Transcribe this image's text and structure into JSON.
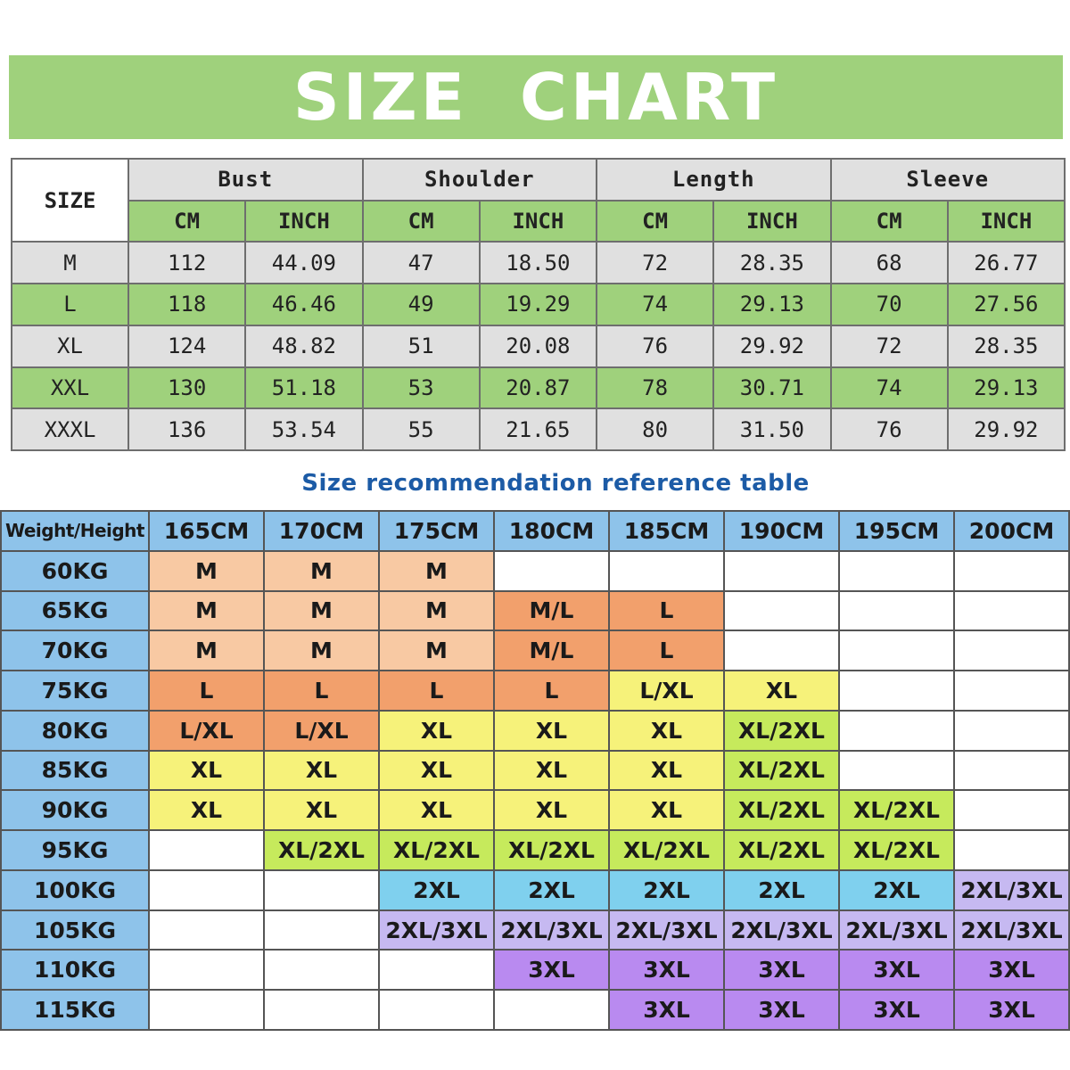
{
  "title": "SIZE  CHART",
  "size_table": {
    "size_header": "SIZE",
    "groups": [
      "Bust",
      "Shoulder",
      "Length",
      "Sleeve"
    ],
    "units": [
      "CM",
      "INCH",
      "CM",
      "INCH",
      "CM",
      "INCH",
      "CM",
      "INCH"
    ],
    "rows": [
      {
        "size": "M",
        "values": [
          "112",
          "44.09",
          "47",
          "18.50",
          "72",
          "28.35",
          "68",
          "26.77"
        ]
      },
      {
        "size": "L",
        "values": [
          "118",
          "46.46",
          "49",
          "19.29",
          "74",
          "29.13",
          "70",
          "27.56"
        ]
      },
      {
        "size": "XL",
        "values": [
          "124",
          "48.82",
          "51",
          "20.08",
          "76",
          "29.92",
          "72",
          "28.35"
        ]
      },
      {
        "size": "XXL",
        "values": [
          "130",
          "51.18",
          "53",
          "20.87",
          "78",
          "30.71",
          "74",
          "29.13"
        ]
      },
      {
        "size": "XXXL",
        "values": [
          "136",
          "53.54",
          "55",
          "21.65",
          "80",
          "31.50",
          "76",
          "29.92"
        ]
      }
    ]
  },
  "recommendation": {
    "subtitle": "Size recommendation reference table",
    "corner_label": "Weight/Height",
    "heights": [
      "165CM",
      "170CM",
      "175CM",
      "180CM",
      "185CM",
      "190CM",
      "195CM",
      "200CM"
    ],
    "rows": [
      {
        "weight": "60KG",
        "cells": [
          [
            "M",
            "peach"
          ],
          [
            "M",
            "peach"
          ],
          [
            "M",
            "peach"
          ],
          [
            "",
            "empty"
          ],
          [
            "",
            "empty"
          ],
          [
            "",
            "empty"
          ],
          [
            "",
            "empty"
          ],
          [
            "",
            "empty"
          ]
        ]
      },
      {
        "weight": "65KG",
        "cells": [
          [
            "M",
            "peach"
          ],
          [
            "M",
            "peach"
          ],
          [
            "M",
            "peach"
          ],
          [
            "M/L",
            "orange"
          ],
          [
            "L",
            "orange"
          ],
          [
            "",
            "empty"
          ],
          [
            "",
            "empty"
          ],
          [
            "",
            "empty"
          ]
        ]
      },
      {
        "weight": "70KG",
        "cells": [
          [
            "M",
            "peach"
          ],
          [
            "M",
            "peach"
          ],
          [
            "M",
            "peach"
          ],
          [
            "M/L",
            "orange"
          ],
          [
            "L",
            "orange"
          ],
          [
            "",
            "empty"
          ],
          [
            "",
            "empty"
          ],
          [
            "",
            "empty"
          ]
        ]
      },
      {
        "weight": "75KG",
        "cells": [
          [
            "L",
            "orange"
          ],
          [
            "L",
            "orange"
          ],
          [
            "L",
            "orange"
          ],
          [
            "L",
            "orange"
          ],
          [
            "L/XL",
            "yellow"
          ],
          [
            "XL",
            "yellow"
          ],
          [
            "",
            "empty"
          ],
          [
            "",
            "empty"
          ]
        ]
      },
      {
        "weight": "80KG",
        "cells": [
          [
            "L/XL",
            "orange"
          ],
          [
            "L/XL",
            "orange"
          ],
          [
            "XL",
            "yellow"
          ],
          [
            "XL",
            "yellow"
          ],
          [
            "XL",
            "yellow"
          ],
          [
            "XL/2XL",
            "lime"
          ],
          [
            "",
            "empty"
          ],
          [
            "",
            "empty"
          ]
        ]
      },
      {
        "weight": "85KG",
        "cells": [
          [
            "XL",
            "yellow"
          ],
          [
            "XL",
            "yellow"
          ],
          [
            "XL",
            "yellow"
          ],
          [
            "XL",
            "yellow"
          ],
          [
            "XL",
            "yellow"
          ],
          [
            "XL/2XL",
            "lime"
          ],
          [
            "",
            "empty"
          ],
          [
            "",
            "empty"
          ]
        ]
      },
      {
        "weight": "90KG",
        "cells": [
          [
            "XL",
            "yellow"
          ],
          [
            "XL",
            "yellow"
          ],
          [
            "XL",
            "yellow"
          ],
          [
            "XL",
            "yellow"
          ],
          [
            "XL",
            "yellow"
          ],
          [
            "XL/2XL",
            "lime"
          ],
          [
            "XL/2XL",
            "lime"
          ],
          [
            "",
            "empty"
          ]
        ]
      },
      {
        "weight": "95KG",
        "cells": [
          [
            "",
            "empty"
          ],
          [
            "XL/2XL",
            "lime"
          ],
          [
            "XL/2XL",
            "lime"
          ],
          [
            "XL/2XL",
            "lime"
          ],
          [
            "XL/2XL",
            "lime"
          ],
          [
            "XL/2XL",
            "lime"
          ],
          [
            "XL/2XL",
            "lime"
          ],
          [
            "",
            "empty"
          ]
        ]
      },
      {
        "weight": "100KG",
        "cells": [
          [
            "",
            "empty"
          ],
          [
            "",
            "empty"
          ],
          [
            "2XL",
            "sky"
          ],
          [
            "2XL",
            "sky"
          ],
          [
            "2XL",
            "sky"
          ],
          [
            "2XL",
            "sky"
          ],
          [
            "2XL",
            "sky"
          ],
          [
            "2XL/3XL",
            "lav"
          ]
        ]
      },
      {
        "weight": "105KG",
        "cells": [
          [
            "",
            "empty"
          ],
          [
            "",
            "empty"
          ],
          [
            "2XL/3XL",
            "lav"
          ],
          [
            "2XL/3XL",
            "lav"
          ],
          [
            "2XL/3XL",
            "lav"
          ],
          [
            "2XL/3XL",
            "lav"
          ],
          [
            "2XL/3XL",
            "lav"
          ],
          [
            "2XL/3XL",
            "lav"
          ]
        ]
      },
      {
        "weight": "110KG",
        "cells": [
          [
            "",
            "empty"
          ],
          [
            "",
            "empty"
          ],
          [
            "",
            "empty"
          ],
          [
            "3XL",
            "purple"
          ],
          [
            "3XL",
            "purple"
          ],
          [
            "3XL",
            "purple"
          ],
          [
            "3XL",
            "purple"
          ],
          [
            "3XL",
            "purple"
          ]
        ]
      },
      {
        "weight": "115KG",
        "cells": [
          [
            "",
            "empty"
          ],
          [
            "",
            "empty"
          ],
          [
            "",
            "empty"
          ],
          [
            "",
            "empty"
          ],
          [
            "3XL",
            "purple"
          ],
          [
            "3XL",
            "purple"
          ],
          [
            "3XL",
            "purple"
          ],
          [
            "3XL",
            "purple"
          ]
        ]
      }
    ]
  },
  "colors": {
    "green": "#9fd17c",
    "gray": "#e0e0e0",
    "blue_header": "#8ec3ea",
    "subtitle": "#1c5ba6",
    "peach": "#f8c9a3",
    "orange": "#f2a06c",
    "yellow": "#f6f27a",
    "lime": "#c6ea5c",
    "sky": "#7fd0ee",
    "lav": "#c6b9f1",
    "purple": "#b98af0"
  }
}
